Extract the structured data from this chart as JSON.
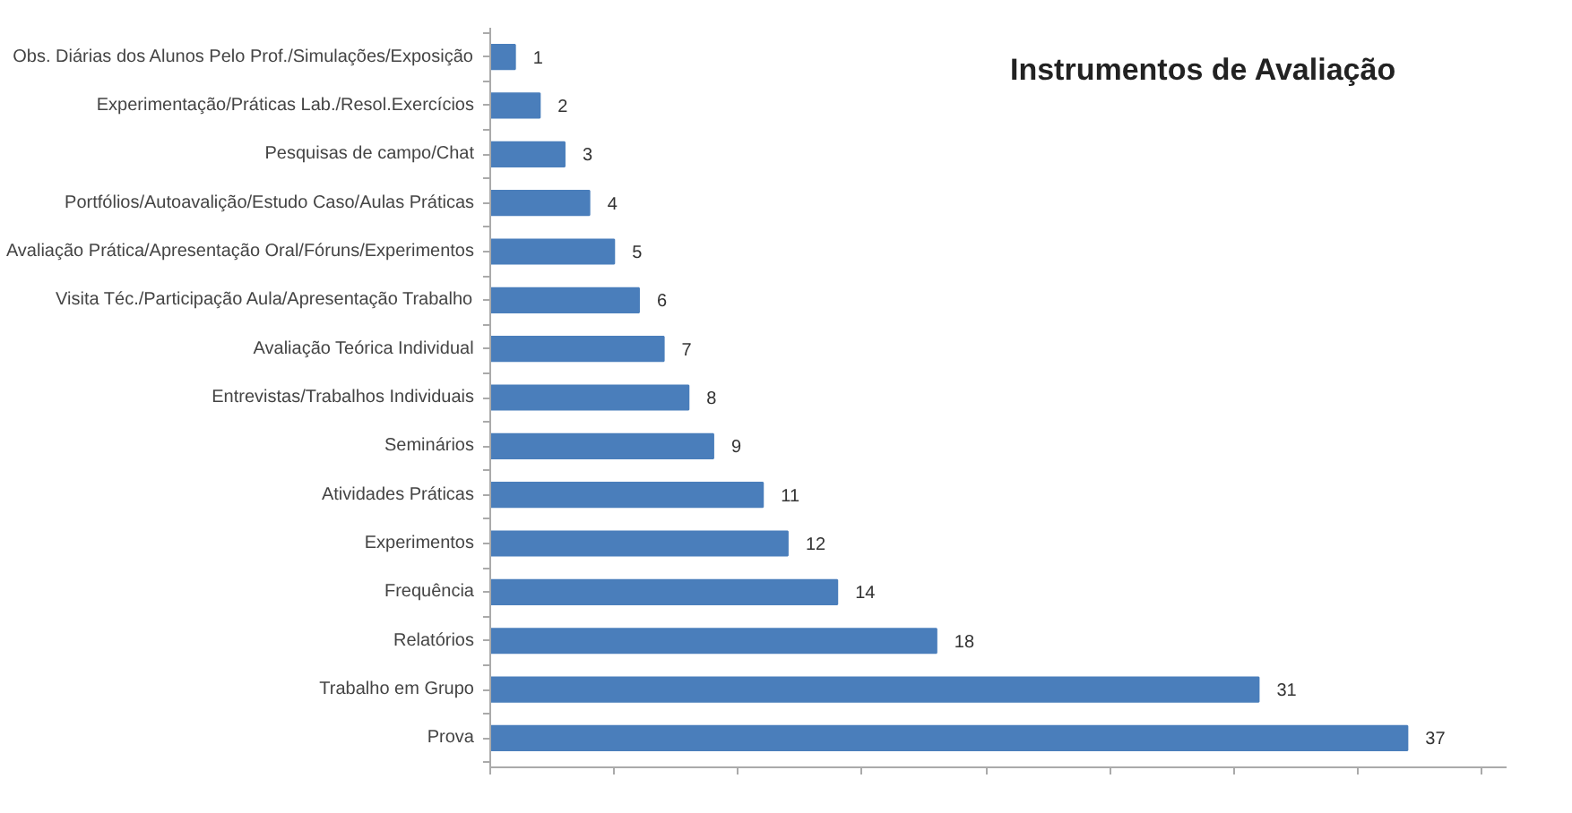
{
  "chart_data": {
    "type": "bar",
    "orientation": "horizontal",
    "title": "Instrumentos de Avaliação",
    "categories": [
      "Obs. Diárias dos Alunos Pelo Prof./Simulações/Exposição",
      "Experimentação/Práticas Lab./Resol.Exercícios",
      "Pesquisas de campo/Chat",
      "Portfólios/Autoavalição/Estudo Caso/Aulas Práticas",
      "Avaliação Prática/Apresentação Oral/Fóruns/Experimentos",
      "Visita Téc./Participação Aula/Apresentação Trabalho",
      "Avaliação Teórica Individual",
      "Entrevistas/Trabalhos Individuais",
      "Seminários",
      "Atividades Práticas",
      "Experimentos",
      "Frequência",
      "Relatórios",
      "Trabalho em Grupo",
      "Prova"
    ],
    "values": [
      1,
      2,
      3,
      4,
      5,
      6,
      7,
      8,
      9,
      11,
      12,
      14,
      18,
      31,
      37
    ],
    "color": "#4a7ebb",
    "data_labels": true,
    "grid": false,
    "tick_labels": "y",
    "xlim": [
      0,
      41
    ],
    "xticks": [
      {
        "value": 0,
        "label": null
      },
      {
        "value": 5,
        "label": null
      },
      {
        "value": 10,
        "label": null
      },
      {
        "value": 15,
        "label": null
      },
      {
        "value": 20,
        "label": null
      },
      {
        "value": 25,
        "label": null
      },
      {
        "value": 30,
        "label": null
      },
      {
        "value": 35,
        "label": null
      },
      {
        "value": 40,
        "label": null
      }
    ]
  }
}
